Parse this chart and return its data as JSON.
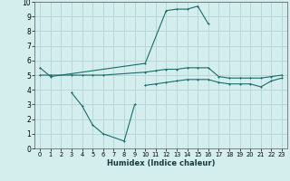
{
  "xlabel": "Humidex (Indice chaleur)",
  "bg_color": "#d4eeee",
  "grid_color": "#b8d8d8",
  "line_color": "#1a6b6b",
  "xlim": [
    -0.5,
    23.5
  ],
  "ylim": [
    0,
    10
  ],
  "xticks": [
    0,
    1,
    2,
    3,
    4,
    5,
    6,
    7,
    8,
    9,
    10,
    11,
    12,
    13,
    14,
    15,
    16,
    17,
    18,
    19,
    20,
    21,
    22,
    23
  ],
  "yticks": [
    0,
    1,
    2,
    3,
    4,
    5,
    6,
    7,
    8,
    9,
    10
  ],
  "series_full": [
    {
      "x": [
        0,
        1,
        10,
        12,
        13,
        14,
        15,
        16
      ],
      "y": [
        5.5,
        4.9,
        5.8,
        9.4,
        9.5,
        9.5,
        9.7,
        8.5
      ]
    },
    {
      "x": [
        0,
        1,
        3,
        4,
        5,
        6,
        10,
        11,
        12,
        13,
        14,
        15,
        16,
        17,
        18,
        19,
        20,
        21,
        22,
        23
      ],
      "y": [
        5.0,
        5.0,
        5.0,
        5.0,
        5.0,
        5.0,
        5.2,
        5.3,
        5.4,
        5.4,
        5.5,
        5.5,
        5.5,
        4.9,
        4.8,
        4.8,
        4.8,
        4.8,
        4.9,
        5.0
      ]
    },
    {
      "x": [
        10,
        11,
        12,
        13,
        14,
        15,
        16,
        17,
        18,
        19,
        20,
        21,
        22,
        23
      ],
      "y": [
        4.3,
        4.4,
        4.5,
        4.6,
        4.7,
        4.7,
        4.7,
        4.5,
        4.4,
        4.4,
        4.4,
        4.2,
        4.6,
        4.8
      ]
    },
    {
      "x": [
        3,
        4,
        5,
        6,
        8,
        9
      ],
      "y": [
        3.8,
        2.9,
        1.6,
        1.0,
        0.5,
        3.0
      ]
    }
  ]
}
